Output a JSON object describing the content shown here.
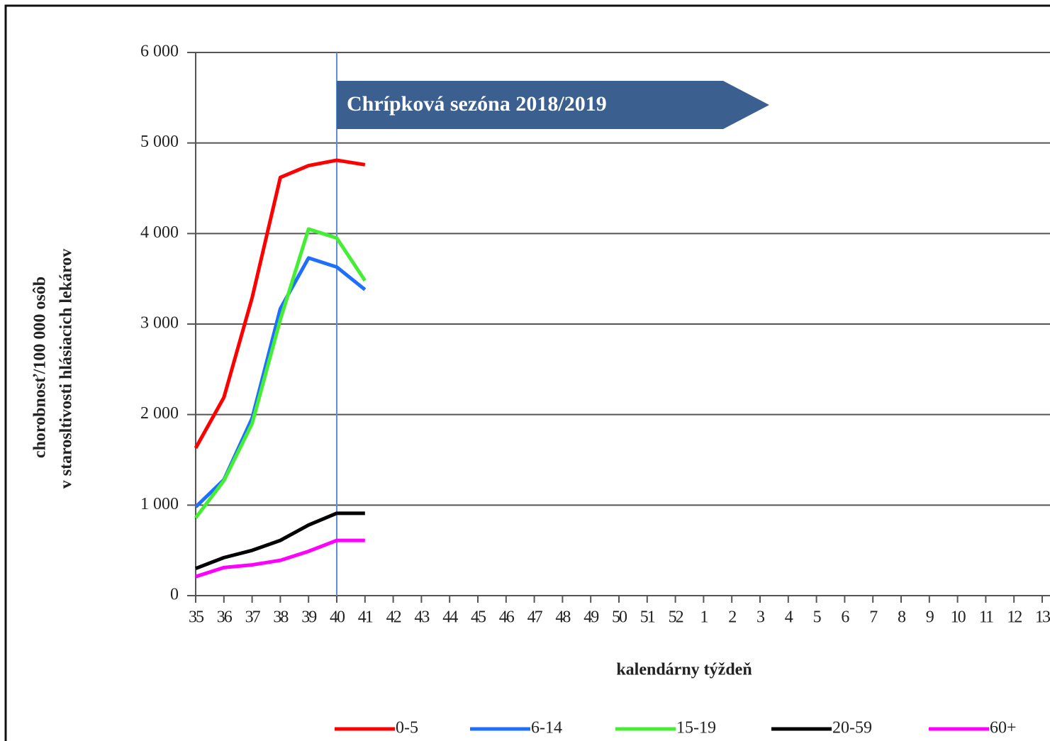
{
  "chart_data": {
    "type": "line",
    "y_label": [
      "chorobnosť/100 000 osôb",
      "v starosltivosti hlásiacich lekárov"
    ],
    "x_label": "kalendárny týždeň",
    "annotation": {
      "text": "Chrípková sezóna 2018/2019",
      "category": "40"
    },
    "categories": [
      "35",
      "36",
      "37",
      "38",
      "39",
      "40",
      "41",
      "42",
      "43",
      "44",
      "45",
      "46",
      "47",
      "48",
      "49",
      "50",
      "51",
      "52",
      "1",
      "2",
      "3",
      "4",
      "5",
      "6",
      "7",
      "8",
      "9",
      "10",
      "11",
      "12",
      "13"
    ],
    "series": [
      {
        "name": "0-5",
        "color": "#ff0000",
        "values": [
          1630,
          2190,
          3290,
          4620,
          4750,
          4810,
          4760,
          null,
          null,
          null,
          null,
          null,
          null,
          null,
          null,
          null,
          null,
          null,
          null,
          null,
          null,
          null,
          null,
          null,
          null,
          null,
          null,
          null,
          null,
          null,
          null
        ]
      },
      {
        "name": "6-14",
        "color": "#1f6fff",
        "values": [
          980,
          1280,
          1960,
          3170,
          3730,
          3630,
          3380,
          null,
          null,
          null,
          null,
          null,
          null,
          null,
          null,
          null,
          null,
          null,
          null,
          null,
          null,
          null,
          null,
          null,
          null,
          null,
          null,
          null,
          null,
          null,
          null
        ]
      },
      {
        "name": "15-19",
        "color": "#44ee33",
        "values": [
          860,
          1270,
          1900,
          3050,
          4050,
          3950,
          3480,
          null,
          null,
          null,
          null,
          null,
          null,
          null,
          null,
          null,
          null,
          null,
          null,
          null,
          null,
          null,
          null,
          null,
          null,
          null,
          null,
          null,
          null,
          null,
          null
        ]
      },
      {
        "name": "20-59",
        "color": "#000000",
        "values": [
          300,
          420,
          500,
          610,
          780,
          910,
          910,
          null,
          null,
          null,
          null,
          null,
          null,
          null,
          null,
          null,
          null,
          null,
          null,
          null,
          null,
          null,
          null,
          null,
          null,
          null,
          null,
          null,
          null,
          null,
          null
        ]
      },
      {
        "name": "60+",
        "color": "#ff00ff",
        "values": [
          210,
          310,
          340,
          390,
          490,
          610,
          610,
          null,
          null,
          null,
          null,
          null,
          null,
          null,
          null,
          null,
          null,
          null,
          null,
          null,
          null,
          null,
          null,
          null,
          null,
          null,
          null,
          null,
          null,
          null,
          null
        ]
      }
    ],
    "ylim": [
      0,
      6000
    ],
    "yticks": [
      0,
      {
        "value": 1000,
        "label": "1 000"
      },
      {
        "value": 2000,
        "label": "2 000"
      },
      {
        "value": 3000,
        "label": "3 000"
      },
      {
        "value": 4000,
        "label": "4 000"
      },
      {
        "value": 5000,
        "label": "5 000"
      },
      {
        "value": 6000,
        "label": "6 000"
      }
    ],
    "grid": true,
    "legend": "bottom"
  }
}
